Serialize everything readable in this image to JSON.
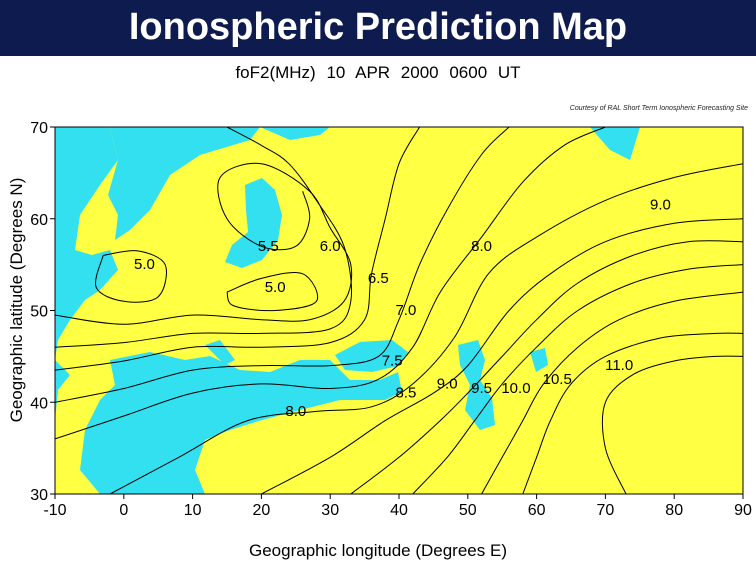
{
  "title": "Ionospheric Prediction Map",
  "subtitle": "foF2(MHz)    10 APR 2000    0600 UT",
  "courtesy": "Courtesy of RAL Short Term Ionospheric Forecasting Site",
  "colors": {
    "land": "#ffff44",
    "water": "#33e0f0",
    "header": "#0d1b4f",
    "contour": "#000000"
  },
  "chart_data": {
    "type": "contour-map",
    "xlabel": "Geographic longitude (Degrees E)",
    "ylabel": "Geographic latitude (Degrees N)",
    "xlim": [
      -10,
      90
    ],
    "ylim": [
      30,
      70
    ],
    "x_ticks": [
      "-10",
      "0",
      "10",
      "20",
      "30",
      "40",
      "50",
      "60",
      "70",
      "80",
      "90"
    ],
    "y_ticks": [
      "30",
      "40",
      "50",
      "60",
      "70"
    ],
    "contours": [
      {
        "label": "5.0",
        "label_at": [
          3,
          54.5
        ],
        "points": [
          [
            -3,
            56
          ],
          [
            2,
            56.5
          ],
          [
            6,
            55
          ],
          [
            5,
            51.5
          ],
          [
            0,
            51
          ],
          [
            -4,
            52.5
          ],
          [
            -3,
            56
          ]
        ]
      },
      {
        "label": "5.0",
        "label_at": [
          22,
          52
        ],
        "points": [
          [
            15,
            52
          ],
          [
            20,
            53.5
          ],
          [
            26,
            54
          ],
          [
            28,
            51
          ],
          [
            22,
            50
          ],
          [
            16,
            50.5
          ],
          [
            15,
            52
          ]
        ]
      },
      {
        "label": "5.5",
        "label_at": [
          21,
          56.5
        ],
        "points": [
          [
            -10,
            49.5
          ],
          [
            0,
            48.5
          ],
          [
            10,
            49.5
          ],
          [
            20,
            49
          ],
          [
            27,
            49
          ],
          [
            32,
            51
          ],
          [
            33,
            55
          ],
          [
            30,
            59
          ],
          [
            27,
            63
          ],
          [
            20,
            66
          ],
          [
            14,
            64.5
          ],
          [
            15,
            60
          ],
          [
            20,
            57
          ],
          [
            25,
            57
          ],
          [
            27,
            60
          ],
          [
            26,
            63
          ]
        ]
      },
      {
        "label": "6.0",
        "label_at": [
          30,
          56.5
        ],
        "points": [
          [
            -10,
            46
          ],
          [
            0,
            46.5
          ],
          [
            10,
            47.5
          ],
          [
            20,
            47.5
          ],
          [
            30,
            48
          ],
          [
            33,
            51
          ],
          [
            32,
            57
          ],
          [
            28,
            62
          ],
          [
            24,
            66
          ],
          [
            20,
            68
          ],
          [
            15,
            70
          ]
        ]
      },
      {
        "label": "6.5",
        "label_at": [
          37,
          53
        ],
        "points": [
          [
            -10,
            43.5
          ],
          [
            0,
            44.5
          ],
          [
            10,
            46
          ],
          [
            20,
            46
          ],
          [
            30,
            46.5
          ],
          [
            35,
            49
          ],
          [
            36,
            54
          ],
          [
            38,
            60
          ],
          [
            40,
            66
          ],
          [
            43,
            70
          ]
        ]
      },
      {
        "label": "7.0",
        "label_at": [
          41,
          49.5
        ],
        "points": [
          [
            -10,
            40
          ],
          [
            0,
            41.5
          ],
          [
            10,
            43.5
          ],
          [
            20,
            44
          ],
          [
            30,
            44
          ],
          [
            37,
            45
          ],
          [
            40,
            49
          ],
          [
            43,
            55
          ],
          [
            47,
            61
          ],
          [
            52,
            67
          ],
          [
            56,
            70
          ]
        ]
      },
      {
        "label": "7.5",
        "label_at": [
          39,
          44
        ],
        "points": [
          [
            -10,
            36
          ],
          [
            0,
            38.5
          ],
          [
            10,
            41
          ],
          [
            20,
            42
          ],
          [
            30,
            41.5
          ],
          [
            37,
            42.5
          ],
          [
            42,
            46
          ],
          [
            46,
            52
          ],
          [
            52,
            58
          ],
          [
            58,
            64
          ],
          [
            64,
            68
          ],
          [
            70,
            70
          ]
        ]
      },
      {
        "label": "8.0",
        "label_at": [
          25,
          38.5
        ],
        "points": [
          [
            -2,
            30
          ],
          [
            8,
            34
          ],
          [
            18,
            38
          ],
          [
            28,
            39
          ],
          [
            36,
            39.5
          ],
          [
            42,
            42
          ],
          [
            48,
            47
          ],
          [
            53,
            54
          ],
          [
            60,
            58
          ],
          [
            70,
            62
          ],
          [
            80,
            64.5
          ],
          [
            90,
            66
          ]
        ]
      },
      {
        "label": "8.0",
        "label_at": [
          52,
          56.5
        ],
        "points": []
      },
      {
        "label": "8.5",
        "label_at": [
          41,
          40.5
        ],
        "points": [
          [
            20,
            30
          ],
          [
            30,
            34
          ],
          [
            38,
            38
          ],
          [
            45,
            41
          ],
          [
            50,
            44
          ],
          [
            56,
            50
          ],
          [
            62,
            54
          ],
          [
            70,
            57.5
          ],
          [
            80,
            59.5
          ],
          [
            90,
            60
          ]
        ]
      },
      {
        "label": "9.0",
        "label_at": [
          47,
          41.5
        ],
        "points": [
          [
            33,
            30
          ],
          [
            40,
            34
          ],
          [
            46,
            38
          ],
          [
            50,
            41
          ],
          [
            55,
            45
          ],
          [
            60,
            49
          ],
          [
            66,
            53
          ],
          [
            74,
            56
          ],
          [
            82,
            57.5
          ],
          [
            90,
            57.5
          ]
        ]
      },
      {
        "label": "9.0",
        "label_at": [
          78,
          61
        ],
        "points": []
      },
      {
        "label": "9.5",
        "label_at": [
          52,
          41
        ],
        "points": [
          [
            42,
            30
          ],
          [
            47,
            34
          ],
          [
            51,
            38
          ],
          [
            55,
            42
          ],
          [
            60,
            46
          ],
          [
            66,
            50
          ],
          [
            74,
            53
          ],
          [
            82,
            54.5
          ],
          [
            90,
            55
          ]
        ]
      },
      {
        "label": "10.0",
        "label_at": [
          57,
          41
        ],
        "points": [
          [
            52,
            30
          ],
          [
            55,
            34
          ],
          [
            58,
            38
          ],
          [
            61,
            42
          ],
          [
            66,
            46
          ],
          [
            72,
            49
          ],
          [
            80,
            51
          ],
          [
            90,
            52
          ]
        ]
      },
      {
        "label": "10.5",
        "label_at": [
          63,
          42
        ],
        "points": [
          [
            58,
            30
          ],
          [
            60,
            34
          ],
          [
            62,
            38
          ],
          [
            65,
            42
          ],
          [
            70,
            45
          ],
          [
            78,
            47
          ],
          [
            86,
            47.5
          ],
          [
            90,
            47.5
          ]
        ]
      },
      {
        "label": "11.0",
        "label_at": [
          72,
          43.5
        ],
        "points": [
          [
            73,
            30
          ],
          [
            70,
            35
          ],
          [
            70,
            40
          ],
          [
            74,
            43
          ],
          [
            80,
            44.5
          ],
          [
            86,
            45
          ],
          [
            90,
            45
          ]
        ]
      }
    ]
  }
}
